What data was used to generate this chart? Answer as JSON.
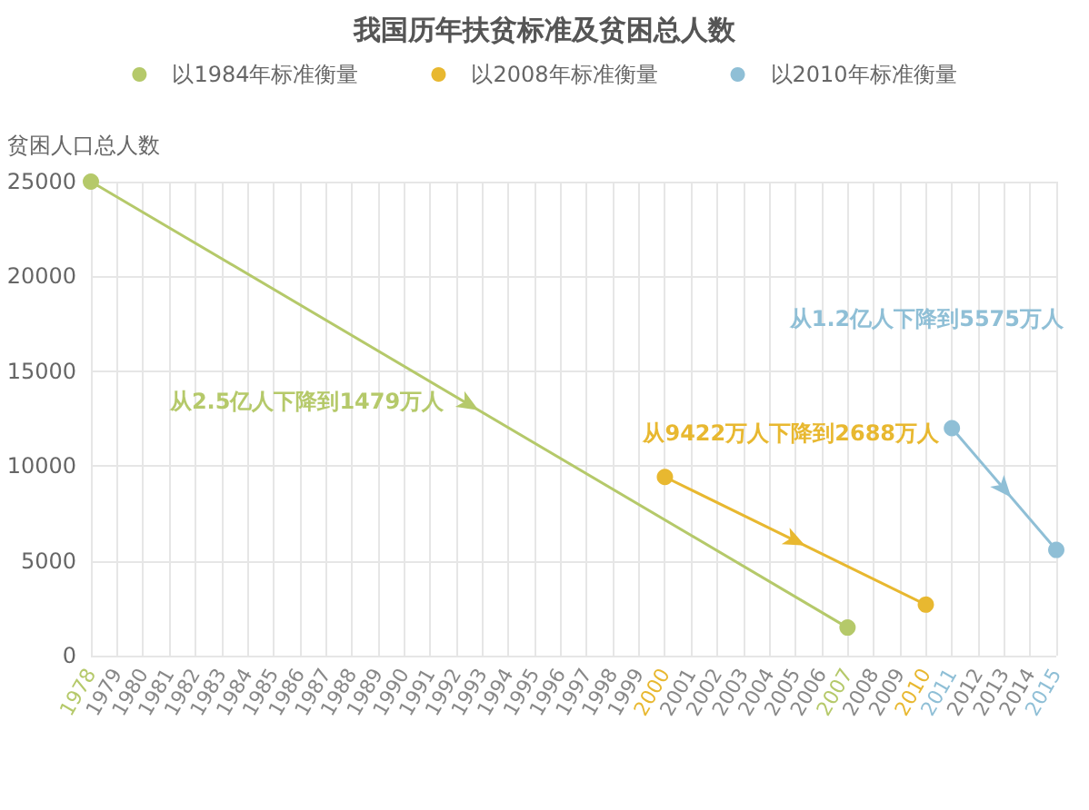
{
  "chart_data": {
    "type": "line",
    "title": "我国历年扶贫标准及贫困总人数",
    "ylabel": "贫困人口总人数",
    "categories": [
      "1978",
      "1979",
      "1980",
      "1981",
      "1982",
      "1983",
      "1984",
      "1985",
      "1986",
      "1987",
      "1988",
      "1989",
      "1990",
      "1991",
      "1992",
      "1993",
      "1994",
      "1995",
      "1996",
      "1997",
      "1998",
      "1999",
      "2000",
      "2001",
      "2002",
      "2003",
      "2004",
      "2005",
      "2006",
      "2007",
      "2008",
      "2009",
      "2010",
      "2011",
      "2012",
      "2013",
      "2014",
      "2015"
    ],
    "series": [
      {
        "name": "以1984年标准衡量",
        "color": "#b5c96a",
        "values": [
          25000,
          null,
          null,
          null,
          null,
          null,
          null,
          null,
          null,
          null,
          null,
          null,
          null,
          null,
          null,
          null,
          null,
          null,
          null,
          null,
          null,
          null,
          null,
          null,
          null,
          null,
          null,
          null,
          null,
          1479,
          null,
          null,
          null,
          null,
          null,
          null,
          null,
          null
        ]
      },
      {
        "name": "以2008年标准衡量",
        "color": "#e8b830",
        "values": [
          null,
          null,
          null,
          null,
          null,
          null,
          null,
          null,
          null,
          null,
          null,
          null,
          null,
          null,
          null,
          null,
          null,
          null,
          null,
          null,
          null,
          null,
          9422,
          null,
          null,
          null,
          null,
          null,
          null,
          null,
          null,
          null,
          2688,
          null,
          null,
          null,
          null,
          null
        ]
      },
      {
        "name": "以2010年标准衡量",
        "color": "#8fbfd6",
        "values": [
          null,
          null,
          null,
          null,
          null,
          null,
          null,
          null,
          null,
          null,
          null,
          null,
          null,
          null,
          null,
          null,
          null,
          null,
          null,
          null,
          null,
          null,
          null,
          null,
          null,
          null,
          null,
          null,
          null,
          null,
          null,
          null,
          null,
          12000,
          null,
          null,
          null,
          5575
        ]
      }
    ],
    "annotations": [
      "从2.5亿人下降到1479万人",
      "从9422万人下降到2688万人",
      "从1.2亿人下降到5575万人"
    ],
    "ylim": [
      0,
      25000
    ],
    "yticks": [
      0,
      5000,
      10000,
      15000,
      20000,
      25000
    ],
    "grid": true,
    "legend": "top",
    "marker": "circle",
    "line_style": "solid"
  }
}
